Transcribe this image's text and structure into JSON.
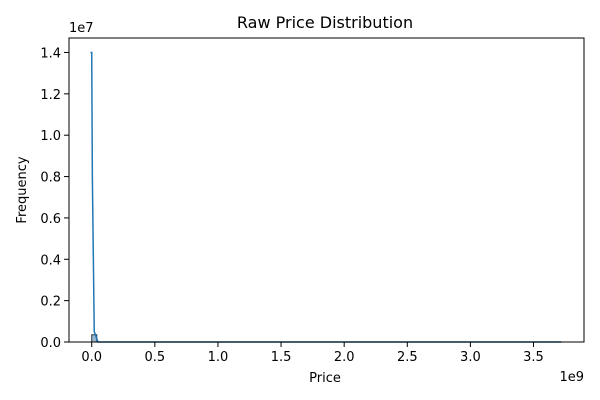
{
  "chart_data": {
    "type": "bar",
    "title": "Raw Price Distribution",
    "xlabel": "Price",
    "ylabel": "Frequency",
    "x_offset_label": "1e9",
    "y_offset_label": "1e7",
    "xlim": [
      -0.18,
      3.9
    ],
    "ylim": [
      0,
      1.47
    ],
    "x_ticks": [
      0.0,
      0.5,
      1.0,
      1.5,
      2.0,
      2.5,
      3.0,
      3.5
    ],
    "x_tick_labels": [
      "0.0",
      "0.5",
      "1.0",
      "1.5",
      "2.0",
      "2.5",
      "3.0",
      "3.5"
    ],
    "y_ticks": [
      0.0,
      0.2,
      0.4,
      0.6,
      0.8,
      1.0,
      1.2,
      1.4
    ],
    "y_tick_labels": [
      "0.0",
      "0.2",
      "0.4",
      "0.6",
      "0.8",
      "1.0",
      "1.2",
      "1.4"
    ],
    "bars": [
      {
        "x0": 0.0,
        "x1": 0.04,
        "value": 0.035
      }
    ],
    "kde_line": {
      "x": [
        -0.01,
        0.0,
        0.005,
        0.02,
        0.05,
        0.2,
        1.0,
        2.0,
        3.0,
        3.72
      ],
      "y": [
        1.4,
        1.4,
        0.8,
        0.05,
        0.0,
        0.0,
        0.0,
        0.0,
        0.0,
        0.0
      ]
    },
    "colors": {
      "bar_fill": "#9bb8cf",
      "bar_stroke": "#2b3a47",
      "line": "#1f77b4"
    },
    "grid": false,
    "legend": "none"
  }
}
